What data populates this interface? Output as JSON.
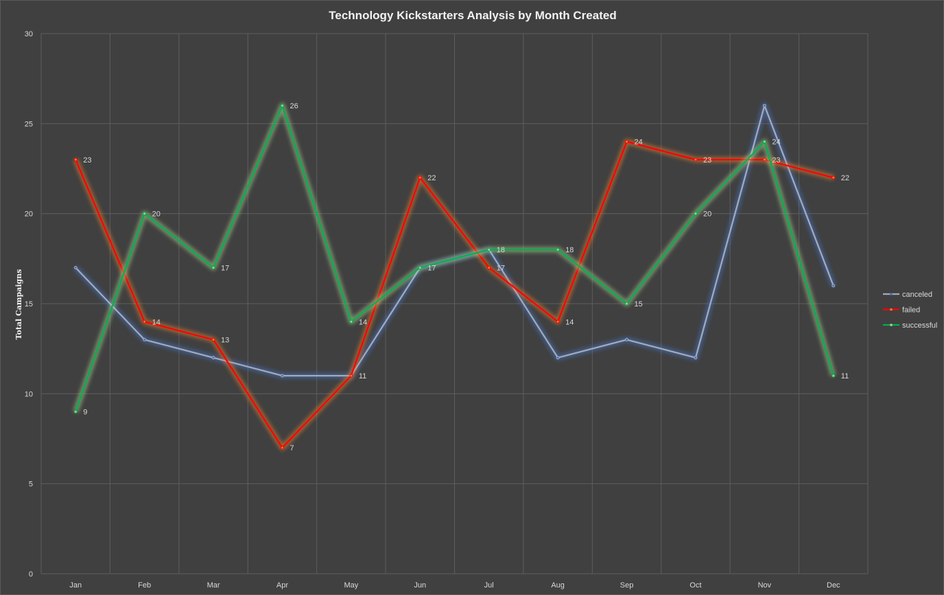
{
  "chart_data": {
    "type": "line",
    "title": "Technology Kickstarters Analysis by Month Created",
    "xlabel": "",
    "ylabel": "Total Campaigns",
    "ylim": [
      0,
      30
    ],
    "yticks": [
      0,
      5,
      10,
      15,
      20,
      25,
      30
    ],
    "grid": true,
    "legend_position": "right",
    "categories": [
      "Jan",
      "Feb",
      "Mar",
      "Apr",
      "May",
      "Jun",
      "Jul",
      "Aug",
      "Sep",
      "Oct",
      "Nov",
      "Dec"
    ],
    "series": [
      {
        "name": "canceled",
        "color": "#a6aab8",
        "glow": "#4472c4",
        "show_data_labels": false,
        "values": [
          17,
          13,
          12,
          11,
          11,
          17,
          18,
          12,
          13,
          12,
          26,
          16
        ]
      },
      {
        "name": "failed",
        "color": "#ff0000",
        "glow": "#ed7d31",
        "show_data_labels": true,
        "values": [
          23,
          14,
          13,
          7,
          11,
          22,
          17,
          14,
          24,
          23,
          23,
          22
        ]
      },
      {
        "name": "successful",
        "color": "#00b050",
        "glow": "#a9d18e",
        "show_data_labels": true,
        "values": [
          9,
          20,
          17,
          26,
          14,
          17,
          18,
          18,
          15,
          20,
          24,
          11
        ]
      }
    ]
  }
}
